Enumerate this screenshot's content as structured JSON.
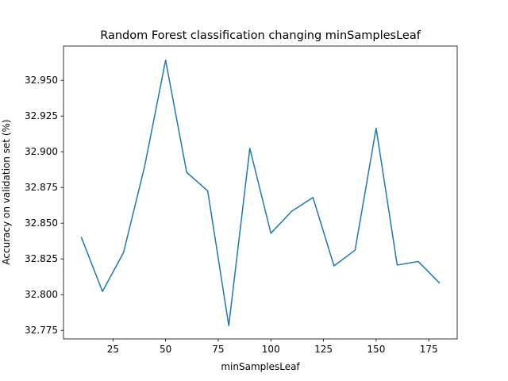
{
  "chart_data": {
    "type": "line",
    "title": "Random Forest classification changing minSamplesLeaf",
    "xlabel": "minSamplesLeaf",
    "ylabel": "Accuracy on validation set (%)",
    "xlim": [
      1.5,
      188.5
    ],
    "ylim": [
      32.769,
      32.974
    ],
    "xticks": [
      25,
      50,
      75,
      100,
      125,
      150,
      175
    ],
    "yticks": [
      32.775,
      32.8,
      32.825,
      32.85,
      32.875,
      32.9,
      32.925,
      32.95
    ],
    "ytick_labels": [
      "32.775",
      "32.800",
      "32.825",
      "32.850",
      "32.875",
      "32.900",
      "32.925",
      "32.950"
    ],
    "grid": false,
    "series": [
      {
        "color": "#1f77b4",
        "x": [
          10,
          20,
          30,
          40,
          50,
          60,
          70,
          80,
          90,
          100,
          110,
          120,
          130,
          140,
          150,
          160,
          170,
          180
        ],
        "y": [
          32.84,
          32.8022,
          32.8294,
          32.8895,
          32.9641,
          32.8856,
          32.8726,
          32.7783,
          32.9024,
          32.843,
          32.8585,
          32.868,
          32.8201,
          32.8312,
          32.9165,
          32.8207,
          32.8232,
          32.8083
        ]
      }
    ]
  }
}
